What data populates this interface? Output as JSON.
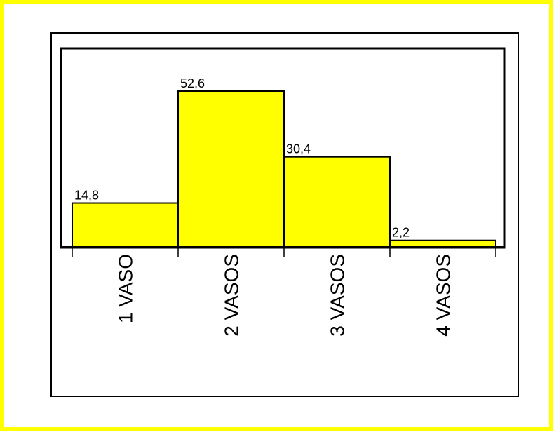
{
  "colors": {
    "border": "#ffff00",
    "bar_fill": "#ffff00",
    "bar_stroke": "#000000",
    "background": "#ffffff"
  },
  "chart_data": {
    "type": "bar",
    "categories": [
      "1 VASO",
      "2 VASOS",
      "3 VASOS",
      "4 VASOS"
    ],
    "values": [
      14.8,
      52.6,
      30.4,
      2.2
    ],
    "value_labels": [
      "14,8",
      "52,6",
      "30,4",
      "2,2"
    ],
    "ylim": [
      0,
      52.6
    ],
    "grid": false,
    "legend": "none",
    "tick_label_orientation": "vertical"
  }
}
